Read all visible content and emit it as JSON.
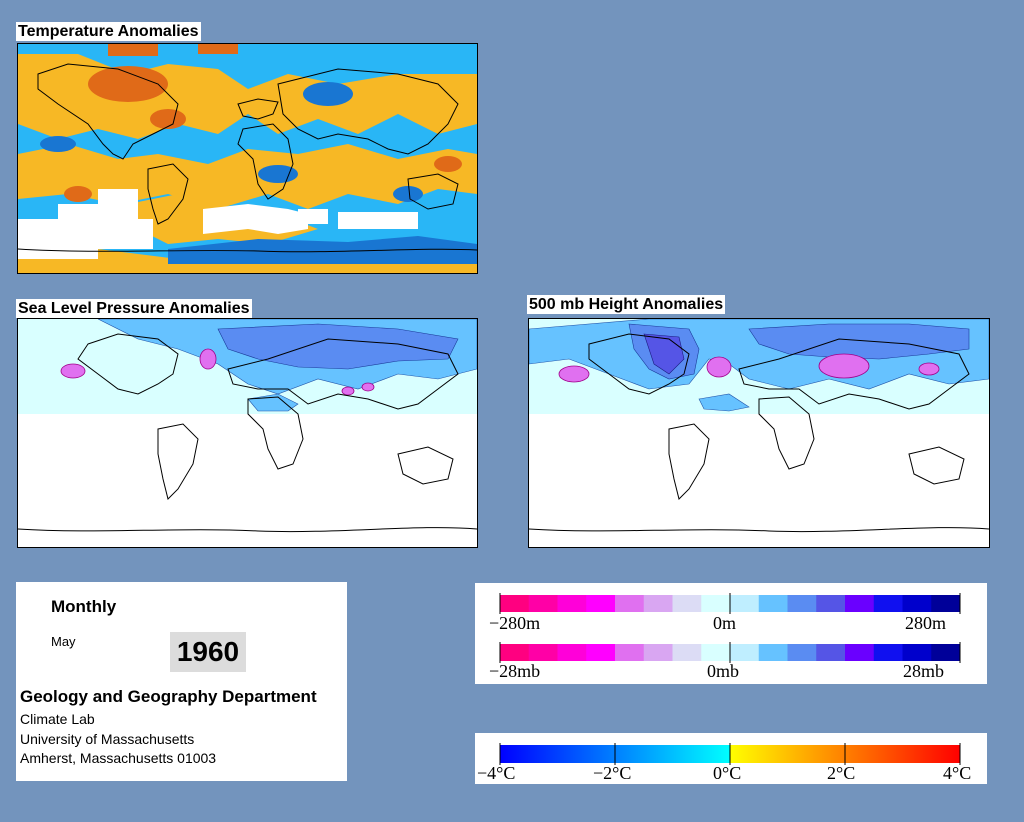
{
  "panels": {
    "temperature": {
      "title": "Temperature Anomalies"
    },
    "slp": {
      "title": "Sea Level Pressure Anomalies"
    },
    "height": {
      "title": "500 mb Height Anomalies"
    }
  },
  "info": {
    "period": "Monthly",
    "month": "May",
    "year": "1960",
    "department": "Geology and Geography Department",
    "lab": "Climate Lab",
    "university": "University of Massachusetts",
    "address": "Amherst, Massachusetts 01003"
  },
  "legends": {
    "height_scale": {
      "labels": [
        "−280m",
        "0m",
        "280m"
      ],
      "colors": [
        "#ff0080",
        "#ff00a6",
        "#ff00d9",
        "#ff00ff",
        "#e070f0",
        "#d9a6f2",
        "#dcdcf5",
        "#d9ffff",
        "#bfeeff",
        "#66c2ff",
        "#5a8cf2",
        "#5555e6",
        "#6a00ff",
        "#1010f0",
        "#0000cc",
        "#000099"
      ]
    },
    "pressure_scale": {
      "labels": [
        "−28mb",
        "0mb",
        "28mb"
      ],
      "colors": [
        "#ff0080",
        "#ff00a6",
        "#ff00d9",
        "#ff00ff",
        "#e070f0",
        "#d9a6f2",
        "#dcdcf5",
        "#d9ffff",
        "#bfeeff",
        "#66c2ff",
        "#5a8cf2",
        "#5555e6",
        "#6a00ff",
        "#1010f0",
        "#0000cc",
        "#000099"
      ]
    },
    "temperature_scale": {
      "labels": [
        "−4°C",
        "−2°C",
        "0°C",
        "2°C",
        "4°C"
      ],
      "colors_cold": [
        "#0000ff",
        "#00ffff"
      ],
      "colors_warm": [
        "#ffff00",
        "#ff0000"
      ]
    }
  }
}
